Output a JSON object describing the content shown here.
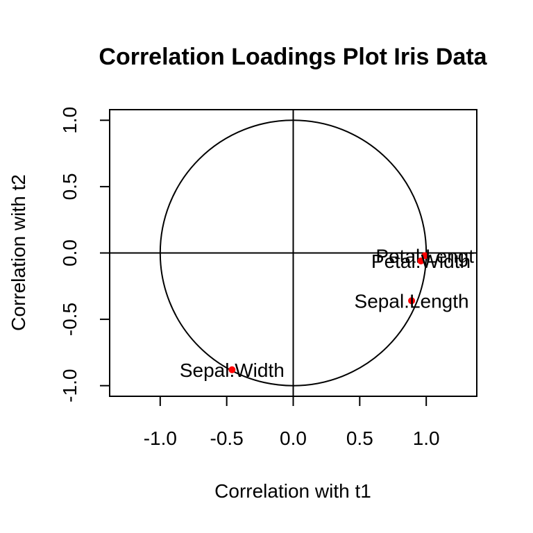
{
  "chart_data": {
    "type": "scatter",
    "title": "Correlation Loadings Plot Iris Data",
    "xlabel": "Correlation with t1",
    "ylabel": "Correlation with t2",
    "xlim": [
      -1.38,
      1.38
    ],
    "ylim": [
      -1.08,
      1.08
    ],
    "xticks": [
      -1.0,
      -0.5,
      0.0,
      0.5,
      1.0
    ],
    "xtick_labels": [
      "-1.0",
      "-0.5",
      "0.0",
      "0.5",
      "1.0"
    ],
    "yticks": [
      -1.0,
      -0.5,
      0.0,
      0.5,
      1.0
    ],
    "ytick_labels": [
      "-1.0",
      "-0.5",
      "0.0",
      "0.5",
      "1.0"
    ],
    "grid": false,
    "legend": "none",
    "reference_circle_radius": 1.0,
    "reference_lines": {
      "x": 0,
      "y": 0
    },
    "point_color": "#ff0000",
    "points": [
      {
        "name": "Sepal.Length",
        "label": "Sepal.Length",
        "x": 0.89,
        "y": -0.36
      },
      {
        "name": "Sepal.Width",
        "label": "Sepal.Width",
        "x": -0.46,
        "y": -0.88
      },
      {
        "name": "Petal.Length",
        "label": "Petal.Lengt",
        "x": 0.99,
        "y": -0.02
      },
      {
        "name": "Petal.Width",
        "label": "Petal.Width",
        "x": 0.96,
        "y": -0.06
      }
    ]
  }
}
